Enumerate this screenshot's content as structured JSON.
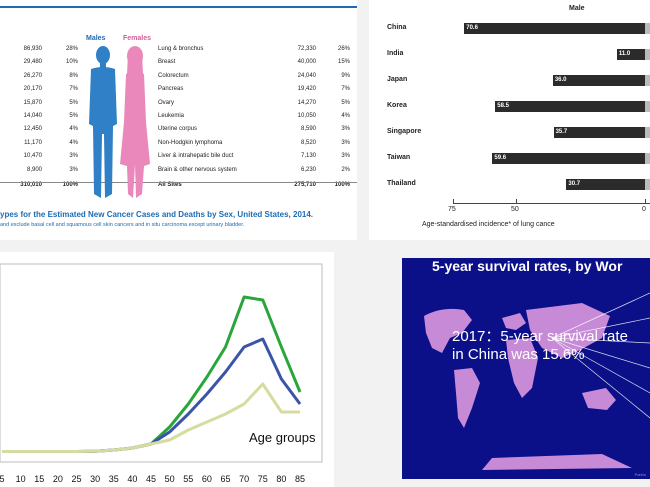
{
  "colors": {
    "male": "#2f80c6",
    "female": "#ea88bb",
    "accent_blue": "#1e6bb3",
    "bar": "#2b2b2b",
    "map_bg": "#0b0f88",
    "map_land": "#c78ad6",
    "line_green": "#2aa53a",
    "line_blue": "#3a55a8",
    "line_khaki": "#d6dca0"
  },
  "cancer_table": {
    "male_header": "Males",
    "female_header": "Females",
    "male_counts": [
      "86,930",
      "29,480",
      "26,270",
      "20,170",
      "15,870",
      "14,040",
      "12,450",
      "11,170",
      "10,470",
      "8,900",
      "310,010"
    ],
    "male_pcts": [
      "28%",
      "10%",
      "8%",
      "7%",
      "5%",
      "5%",
      "4%",
      "4%",
      "3%",
      "3%",
      "100%"
    ],
    "female_sites": [
      "Lung & bronchus",
      "Breast",
      "Colorectum",
      "Pancreas",
      "Ovary",
      "Leukemia",
      "Uterine corpus",
      "Non-Hodgkin lymphoma",
      "Liver & intrahepatic bile duct",
      "Brain & other nervous system",
      "All Sites"
    ],
    "female_counts": [
      "72,330",
      "40,000",
      "24,040",
      "19,420",
      "14,270",
      "10,050",
      "8,590",
      "8,520",
      "7,130",
      "6,230",
      "275,710"
    ],
    "female_pcts": [
      "26%",
      "15%",
      "9%",
      "7%",
      "5%",
      "4%",
      "3%",
      "3%",
      "3%",
      "2%",
      "100%"
    ],
    "caption": "ypes for the Estimated New Cancer Cases and Deaths by Sex, United States, 2014.",
    "caption_note": "and exclude basal cell and squamous cell skin cancers and in situ carcinoma except urinary bladder."
  },
  "chart_data": [
    {
      "type": "bar",
      "title": "Male",
      "categories": [
        "China",
        "India",
        "Japan",
        "Korea",
        "Singapore",
        "Taiwan",
        "Thailand"
      ],
      "values": [
        70.6,
        11.0,
        36.0,
        58.5,
        35.7,
        59.6,
        30.7
      ],
      "value_labels": [
        "70.6",
        "11.0",
        "36.0",
        "58.5",
        "35.7",
        "59.6",
        "30.7"
      ],
      "xticks": [
        "75",
        "50",
        "0"
      ],
      "xlabel": "Age-standardised incidence* of lung cance",
      "xlim": [
        75,
        0
      ]
    },
    {
      "type": "line",
      "annotation": "Age groups",
      "x": [
        5,
        10,
        15,
        20,
        25,
        30,
        35,
        40,
        45,
        50,
        55,
        60,
        65,
        70,
        75,
        80,
        85
      ],
      "x_labels": [
        "5",
        "10",
        "15",
        "20",
        "25",
        "30",
        "35",
        "40",
        "45",
        "50",
        "55",
        "60",
        "65",
        "70",
        "75",
        "80",
        "85"
      ],
      "series": [
        {
          "color": "green",
          "values": [
            0.5,
            0.5,
            0.5,
            0.5,
            0.5,
            0.8,
            2,
            4,
            8,
            25,
            48,
            75,
            105,
            155,
            152,
            105,
            60
          ]
        },
        {
          "color": "blue",
          "values": [
            0.5,
            0.5,
            0.5,
            0.5,
            0.5,
            0.8,
            2,
            4,
            8,
            20,
            38,
            58,
            80,
            105,
            113,
            73,
            48
          ]
        },
        {
          "color": "khaki",
          "values": [
            0.5,
            0.5,
            0.5,
            0.5,
            0.5,
            0.8,
            2,
            4,
            8,
            12,
            22,
            30,
            38,
            48,
            68,
            40,
            40
          ]
        }
      ],
      "ylim": [
        0,
        170
      ]
    }
  ],
  "survival": {
    "title": "5-year survival rates, by Wor",
    "note": "2017：5-year survival rate in China was 15.6%",
    "credit": "Parkin"
  }
}
